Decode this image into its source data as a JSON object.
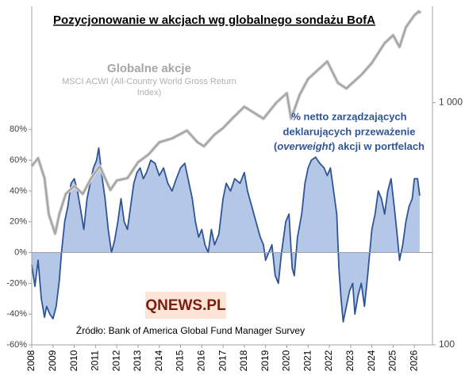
{
  "chart_data": {
    "type": "area-line",
    "title": "Pozycjonowanie w akcjach wg globalnego sondażu BofA",
    "series_label": "Globalne akcje",
    "series_sublabel": "MSCI ACWI (All-Country World Gross Return Index)",
    "annotation": {
      "line1": "% netto zarządzających",
      "line2": "deklarujących przeważenie",
      "line3": [
        "(",
        "overweight",
        ") akcji w portfelach"
      ]
    },
    "source": "Źródło: Bank of America Global Fund Manager Survey",
    "logo": "QNEWS.PL",
    "xlim": [
      2008,
      2026.85
    ],
    "xticks": [
      2008,
      2009,
      2010,
      2011,
      2012,
      2013,
      2014,
      2015,
      2016,
      2017,
      2018,
      2019,
      2020,
      2021,
      2022,
      2023,
      2024,
      2025,
      2026
    ],
    "ylim": [
      -60,
      160
    ],
    "yticks": [
      {
        "value": -60,
        "label": "-60%"
      },
      {
        "value": -40,
        "label": "-40%"
      },
      {
        "value": -20,
        "label": "-20%"
      },
      {
        "value": 0,
        "label": "0%"
      },
      {
        "value": 20,
        "label": "20%"
      },
      {
        "value": 40,
        "label": "40%"
      },
      {
        "value": 60,
        "label": "60%"
      },
      {
        "value": 80,
        "label": "80%"
      }
    ],
    "y2lim": [
      100,
      2500
    ],
    "y2ticks": [
      100,
      {
        "value": 1000,
        "label": "1 000"
      }
    ],
    "y2log": true,
    "series": [
      {
        "name": "% netto overweight",
        "color": "#2f5597",
        "fill": "#b4c7e7",
        "x": [
          2008.0,
          2008.15,
          2008.3,
          2008.45,
          2008.6,
          2008.7,
          2008.85,
          2009.0,
          2009.15,
          2009.3,
          2009.4,
          2009.55,
          2009.7,
          2009.85,
          2010.0,
          2010.15,
          2010.3,
          2010.45,
          2010.6,
          2010.75,
          2010.9,
          2011.05,
          2011.15,
          2011.3,
          2011.45,
          2011.6,
          2011.75,
          2011.9,
          2012.05,
          2012.2,
          2012.35,
          2012.5,
          2012.65,
          2012.8,
          2012.95,
          2013.1,
          2013.25,
          2013.4,
          2013.6,
          2013.8,
          2014.0,
          2014.2,
          2014.4,
          2014.6,
          2014.8,
          2015.0,
          2015.2,
          2015.4,
          2015.55,
          2015.7,
          2015.85,
          2016.0,
          2016.15,
          2016.3,
          2016.45,
          2016.6,
          2016.8,
          2017.0,
          2017.15,
          2017.35,
          2017.55,
          2017.8,
          2018.0,
          2018.15,
          2018.35,
          2018.55,
          2018.75,
          2018.9,
          2019.0,
          2019.15,
          2019.3,
          2019.45,
          2019.6,
          2019.75,
          2019.95,
          2020.1,
          2020.25,
          2020.35,
          2020.5,
          2020.7,
          2020.85,
          2021.0,
          2021.15,
          2021.35,
          2021.55,
          2021.75,
          2021.9,
          2022.05,
          2022.2,
          2022.35,
          2022.45,
          2022.55,
          2022.65,
          2022.8,
          2022.95,
          2023.1,
          2023.2,
          2023.35,
          2023.5,
          2023.65,
          2023.8,
          2024.0,
          2024.15,
          2024.3,
          2024.45,
          2024.6,
          2024.75,
          2024.9,
          2025.05,
          2025.2,
          2025.3,
          2025.45,
          2025.6,
          2025.75,
          2025.9,
          2026.0,
          2026.15,
          2026.25
        ],
        "values": [
          -8,
          -22,
          -5,
          -30,
          -42,
          -35,
          -40,
          -43,
          -35,
          -18,
          0,
          20,
          30,
          45,
          48,
          40,
          28,
          15,
          35,
          45,
          55,
          60,
          68,
          50,
          35,
          15,
          0,
          8,
          20,
          35,
          20,
          15,
          30,
          45,
          52,
          55,
          48,
          52,
          60,
          58,
          50,
          55,
          45,
          40,
          48,
          55,
          58,
          45,
          35,
          20,
          10,
          15,
          5,
          0,
          15,
          5,
          12,
          35,
          45,
          40,
          48,
          45,
          52,
          40,
          30,
          20,
          10,
          5,
          -5,
          0,
          5,
          -15,
          -20,
          0,
          20,
          25,
          -10,
          -15,
          10,
          25,
          45,
          55,
          60,
          62,
          58,
          55,
          50,
          55,
          40,
          25,
          -10,
          -30,
          -45,
          -35,
          -25,
          -20,
          -40,
          -28,
          -20,
          -35,
          -15,
          15,
          25,
          40,
          35,
          25,
          40,
          48,
          30,
          10,
          -5,
          5,
          20,
          30,
          35,
          48,
          48,
          37
        ]
      },
      {
        "name": "MSCI ACWI",
        "color": "#a6a6a6",
        "axis": "y2",
        "x": [
          2008.0,
          2008.3,
          2008.6,
          2008.8,
          2009.1,
          2009.3,
          2009.6,
          2010.0,
          2010.4,
          2010.8,
          2011.2,
          2011.7,
          2012.0,
          2012.5,
          2013.0,
          2013.5,
          2014.0,
          2014.6,
          2015.3,
          2015.8,
          2016.1,
          2016.6,
          2017.0,
          2017.5,
          2018.0,
          2018.9,
          2019.5,
          2020.0,
          2020.2,
          2020.6,
          2021.0,
          2021.9,
          2022.4,
          2022.8,
          2023.5,
          2024.0,
          2024.6,
          2025.0,
          2025.3,
          2025.6,
          2026.0,
          2026.2,
          2026.3
        ],
        "values": [
          547,
          590,
          488,
          347,
          288,
          347,
          420,
          453,
          420,
          488,
          547,
          436,
          477,
          488,
          568,
          612,
          686,
          712,
          768,
          686,
          661,
          739,
          786,
          873,
          963,
          859,
          1000,
          1095,
          859,
          1078,
          1254,
          1480,
          1208,
          1145,
          1302,
          1459,
          1762,
          1900,
          1698,
          2049,
          2296,
          2383,
          2350
        ]
      }
    ]
  }
}
